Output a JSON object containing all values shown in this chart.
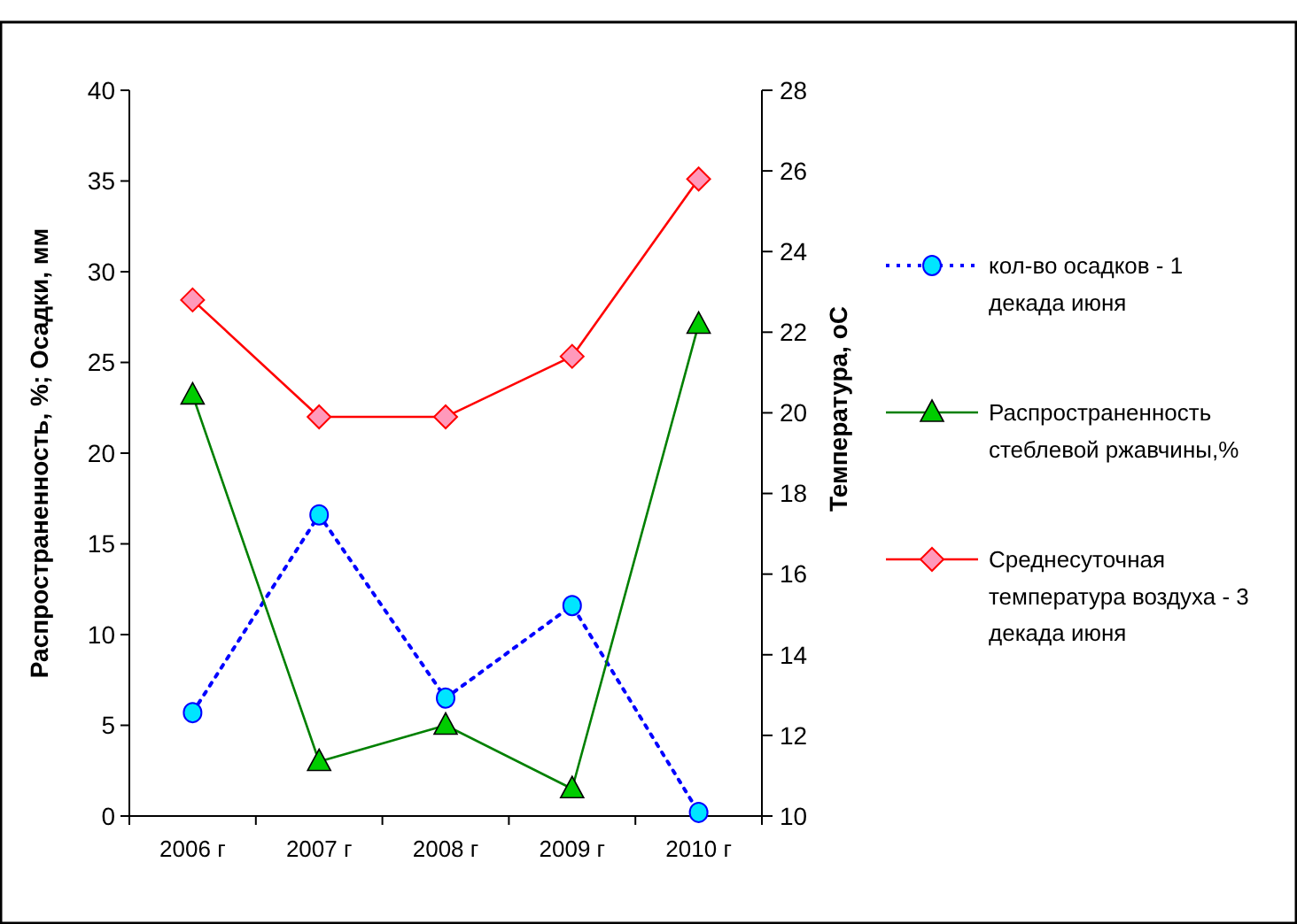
{
  "chart_data": {
    "type": "line",
    "ylabel": "Распространенность, %;  Осадки, мм",
    "y2label": "Температура, оС",
    "categories": [
      "2006 г",
      "2007 г",
      "2008 г",
      "2009 г",
      "2010 г"
    ],
    "series": [
      {
        "name": "кол-во осадков - 1 декада июня",
        "color": "#0000ff",
        "values": [
          5.7,
          16.6,
          6.5,
          11.6,
          0.2
        ],
        "marker": "circle",
        "line_style": "dotted"
      },
      {
        "name": "Распространенность стеблевой ржавчины,%",
        "color": "#008000",
        "values": [
          23.2,
          3.0,
          5.0,
          1.5,
          27.1
        ],
        "marker": "triangle",
        "line_style": "solid"
      },
      {
        "name": "Среднесуточная температура воздуха - 3 декада июня",
        "color": "#ff0000",
        "values": [
          22.8,
          19.9,
          19.9,
          21.4,
          25.8
        ],
        "marker": "diamond",
        "line_style": "solid",
        "axis": "y2"
      }
    ],
    "ylim": [
      0,
      40
    ],
    "yticks": [
      0,
      5,
      10,
      15,
      20,
      25,
      30,
      35,
      40
    ],
    "y2lim": [
      10,
      28
    ],
    "y2ticks": [
      10,
      12,
      14,
      16,
      18,
      20,
      22,
      24,
      26,
      28
    ],
    "grid": false,
    "legend": "right"
  }
}
